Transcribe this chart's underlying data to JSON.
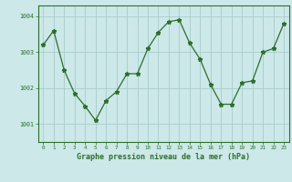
{
  "x": [
    0,
    1,
    2,
    3,
    4,
    5,
    6,
    7,
    8,
    9,
    10,
    11,
    12,
    13,
    14,
    15,
    16,
    17,
    18,
    19,
    20,
    21,
    22,
    23
  ],
  "y": [
    1003.2,
    1003.6,
    1002.5,
    1001.85,
    1001.5,
    1001.1,
    1001.65,
    1001.9,
    1002.4,
    1002.4,
    1003.1,
    1003.55,
    1003.85,
    1003.9,
    1003.25,
    1002.8,
    1002.1,
    1001.55,
    1001.55,
    1002.15,
    1002.2,
    1003.0,
    1003.1,
    1003.8
  ],
  "line_color": "#2d6e2d",
  "marker": "*",
  "marker_size": 3.5,
  "bg_color": "#cce8e8",
  "grid_color": "#aacccc",
  "ylabel_values": [
    1001,
    1002,
    1003,
    1004
  ],
  "xlabel_label": "Graphe pression niveau de la mer (hPa)",
  "ylim": [
    1000.5,
    1004.3
  ],
  "xlim": [
    -0.5,
    23.5
  ]
}
